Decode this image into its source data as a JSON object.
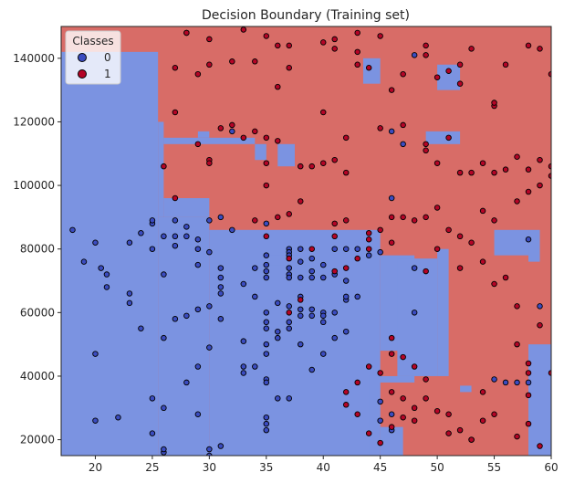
{
  "chart_data": {
    "type": "scatter",
    "title": "Decision Boundary (Training set)",
    "xlabel": "",
    "ylabel": "",
    "xlim": [
      17,
      60
    ],
    "ylim": [
      15000,
      150000
    ],
    "x_ticks": [
      "20",
      "25",
      "30",
      "35",
      "40",
      "45",
      "50",
      "55",
      "60"
    ],
    "x_tick_values": [
      20,
      25,
      30,
      35,
      40,
      45,
      50,
      55,
      60
    ],
    "y_ticks": [
      "20000",
      "40000",
      "60000",
      "80000",
      "100000",
      "120000",
      "140000"
    ],
    "y_tick_values": [
      20000,
      40000,
      60000,
      80000,
      100000,
      120000,
      140000
    ],
    "grid": false,
    "legend": {
      "title": "Classes",
      "placement": "top-left",
      "entries": [
        {
          "label": "0",
          "color": "#3b4cc0"
        },
        {
          "label": "1",
          "color": "#b40426"
        }
      ]
    },
    "colors": {
      "class0_region": "#7b93e1",
      "class1_region": "#d86c67",
      "class0_point": "#3b4cc0",
      "class1_point": "#b40426"
    },
    "regions_class0": [
      [
        17,
        25.5,
        15000,
        142000
      ],
      [
        25.5,
        30,
        15000,
        90000
      ],
      [
        30,
        45,
        15000,
        86000
      ],
      [
        25.5,
        26,
        90000,
        120000
      ],
      [
        26,
        30,
        90000,
        96000
      ],
      [
        26,
        34,
        113000,
        115000
      ],
      [
        29,
        30,
        115000,
        117000
      ],
      [
        34,
        35,
        108000,
        113000
      ],
      [
        36,
        37.5,
        106000,
        113000
      ],
      [
        43.5,
        45,
        132000,
        140000
      ],
      [
        50,
        52,
        130000,
        138000
      ],
      [
        49,
        52,
        113000,
        117000
      ],
      [
        45,
        48,
        48000,
        78000
      ],
      [
        46.5,
        50,
        40000,
        77000
      ],
      [
        50,
        51,
        40000,
        80000
      ],
      [
        44,
        48,
        38000,
        40000
      ],
      [
        44,
        45,
        15000,
        40000
      ],
      [
        45,
        47,
        15000,
        24000
      ],
      [
        55,
        58,
        78000,
        86000
      ],
      [
        58,
        59,
        76000,
        86000
      ],
      [
        58,
        60,
        15000,
        50000
      ],
      [
        52,
        53,
        35000,
        37000
      ],
      [
        35,
        38,
        75000,
        78000
      ]
    ],
    "points_class0": [
      [
        18,
        86000
      ],
      [
        19,
        76000
      ],
      [
        20,
        82000
      ],
      [
        20,
        26000
      ],
      [
        20,
        47000
      ],
      [
        20.5,
        74000
      ],
      [
        21,
        72000
      ],
      [
        21,
        68000
      ],
      [
        22,
        27000
      ],
      [
        23,
        82000
      ],
      [
        23,
        63000
      ],
      [
        23,
        66000
      ],
      [
        24,
        85000
      ],
      [
        24,
        55000
      ],
      [
        25,
        88000
      ],
      [
        25,
        89000
      ],
      [
        25,
        80000
      ],
      [
        25,
        22000
      ],
      [
        25,
        33000
      ],
      [
        26,
        84000
      ],
      [
        26,
        72000
      ],
      [
        26,
        52000
      ],
      [
        26,
        16000
      ],
      [
        26,
        17000
      ],
      [
        26,
        30000
      ],
      [
        27,
        89000
      ],
      [
        27,
        84000
      ],
      [
        27,
        81000
      ],
      [
        27,
        58000
      ],
      [
        28,
        87000
      ],
      [
        28,
        59000
      ],
      [
        28,
        84000
      ],
      [
        28,
        38000
      ],
      [
        29,
        83000
      ],
      [
        29,
        80000
      ],
      [
        29,
        75000
      ],
      [
        29,
        28000
      ],
      [
        29,
        43000
      ],
      [
        29,
        61000
      ],
      [
        30,
        89000
      ],
      [
        30,
        62000
      ],
      [
        30,
        49000
      ],
      [
        30,
        79000
      ],
      [
        30,
        17000
      ],
      [
        30,
        15000
      ],
      [
        31,
        90000
      ],
      [
        31,
        74000
      ],
      [
        31,
        71000
      ],
      [
        31,
        68000
      ],
      [
        31,
        66000
      ],
      [
        31,
        58000
      ],
      [
        31,
        18000
      ],
      [
        32,
        117000
      ],
      [
        32,
        86000
      ],
      [
        33,
        69000
      ],
      [
        33,
        51000
      ],
      [
        33,
        43000
      ],
      [
        33,
        41000
      ],
      [
        34,
        65000
      ],
      [
        34,
        74000
      ],
      [
        34,
        43000
      ],
      [
        35,
        88000
      ],
      [
        35,
        78000
      ],
      [
        35,
        75000
      ],
      [
        35,
        73000
      ],
      [
        35,
        71000
      ],
      [
        35,
        60000
      ],
      [
        35,
        57000
      ],
      [
        35,
        55000
      ],
      [
        35,
        50000
      ],
      [
        35,
        47000
      ],
      [
        35,
        39000
      ],
      [
        35,
        38000
      ],
      [
        35,
        25000
      ],
      [
        35,
        23000
      ],
      [
        35,
        27000
      ],
      [
        36,
        63000
      ],
      [
        36,
        52000
      ],
      [
        36,
        54000
      ],
      [
        36,
        33000
      ],
      [
        37,
        80000
      ],
      [
        37,
        79000
      ],
      [
        37,
        78000
      ],
      [
        37,
        74000
      ],
      [
        37,
        72000
      ],
      [
        37,
        55000
      ],
      [
        37,
        57000
      ],
      [
        37,
        62000
      ],
      [
        37,
        71000
      ],
      [
        37,
        33000
      ],
      [
        38,
        80000
      ],
      [
        38,
        61000
      ],
      [
        38,
        71000
      ],
      [
        38,
        50000
      ],
      [
        38,
        59000
      ],
      [
        38,
        65000
      ],
      [
        38,
        76000
      ],
      [
        39,
        77000
      ],
      [
        39,
        73000
      ],
      [
        39,
        71000
      ],
      [
        39,
        59000
      ],
      [
        39,
        61000
      ],
      [
        39,
        42000
      ],
      [
        40,
        75000
      ],
      [
        40,
        71000
      ],
      [
        40,
        60000
      ],
      [
        40,
        59000
      ],
      [
        40,
        57000
      ],
      [
        40,
        47000
      ],
      [
        41,
        72000
      ],
      [
        41,
        80000
      ],
      [
        41,
        60000
      ],
      [
        41,
        52000
      ],
      [
        42,
        80000
      ],
      [
        42,
        64000
      ],
      [
        42,
        65000
      ],
      [
        42,
        70000
      ],
      [
        42,
        54000
      ],
      [
        43,
        80000
      ],
      [
        43,
        65000
      ],
      [
        44,
        78000
      ],
      [
        45,
        79000
      ],
      [
        45,
        32000
      ],
      [
        45,
        26000
      ],
      [
        46,
        96000
      ],
      [
        46,
        117000
      ],
      [
        46,
        28000
      ],
      [
        46,
        23000
      ],
      [
        47,
        113000
      ],
      [
        48,
        141000
      ],
      [
        48,
        74000
      ],
      [
        58,
        83000
      ],
      [
        59,
        62000
      ],
      [
        55,
        39000
      ],
      [
        56,
        38000
      ],
      [
        57,
        38000
      ],
      [
        58,
        38000
      ],
      [
        48,
        60000
      ],
      [
        53,
        20000
      ]
    ],
    "points_class1": [
      [
        28,
        148000
      ],
      [
        30,
        146000
      ],
      [
        33,
        149000
      ],
      [
        35,
        147000
      ],
      [
        36,
        144000
      ],
      [
        37,
        144000
      ],
      [
        40,
        145000
      ],
      [
        41,
        143000
      ],
      [
        41,
        146000
      ],
      [
        43,
        148000
      ],
      [
        43,
        138000
      ],
      [
        45,
        147000
      ],
      [
        46,
        130000
      ],
      [
        47,
        135000
      ],
      [
        49,
        144000
      ],
      [
        49,
        141000
      ],
      [
        50,
        134000
      ],
      [
        51,
        136000
      ],
      [
        52,
        138000
      ],
      [
        52,
        132000
      ],
      [
        53,
        143000
      ],
      [
        55,
        125000
      ],
      [
        55,
        126000
      ],
      [
        56,
        138000
      ],
      [
        58,
        144000
      ],
      [
        59,
        143000
      ],
      [
        60,
        135000
      ],
      [
        27,
        137000
      ],
      [
        30,
        138000
      ],
      [
        32,
        139000
      ],
      [
        34,
        139000
      ],
      [
        26,
        106000
      ],
      [
        27,
        123000
      ],
      [
        28,
        148000
      ],
      [
        29,
        135000
      ],
      [
        29,
        113000
      ],
      [
        30,
        108000
      ],
      [
        31,
        118000
      ],
      [
        32,
        119000
      ],
      [
        33,
        115000
      ],
      [
        34,
        117000
      ],
      [
        35,
        115000
      ],
      [
        35,
        107000
      ],
      [
        36,
        114000
      ],
      [
        36,
        131000
      ],
      [
        37,
        137000
      ],
      [
        38,
        106000
      ],
      [
        39,
        106000
      ],
      [
        40,
        107000
      ],
      [
        40,
        123000
      ],
      [
        41,
        108000
      ],
      [
        42,
        104000
      ],
      [
        42,
        115000
      ],
      [
        43,
        142000
      ],
      [
        44,
        137000
      ],
      [
        45,
        118000
      ],
      [
        47,
        119000
      ],
      [
        49,
        111000
      ],
      [
        49,
        113000
      ],
      [
        50,
        107000
      ],
      [
        51,
        115000
      ],
      [
        52,
        104000
      ],
      [
        53,
        104000
      ],
      [
        54,
        107000
      ],
      [
        55,
        104000
      ],
      [
        56,
        105000
      ],
      [
        57,
        109000
      ],
      [
        58,
        105000
      ],
      [
        59,
        108000
      ],
      [
        60,
        106000
      ],
      [
        27,
        96000
      ],
      [
        30,
        107000
      ],
      [
        34,
        89000
      ],
      [
        35,
        100000
      ],
      [
        36,
        90000
      ],
      [
        37,
        91000
      ],
      [
        38,
        95000
      ],
      [
        41,
        88000
      ],
      [
        42,
        89000
      ],
      [
        44,
        85000
      ],
      [
        45,
        86000
      ],
      [
        46,
        90000
      ],
      [
        47,
        90000
      ],
      [
        48,
        89000
      ],
      [
        49,
        90000
      ],
      [
        50,
        93000
      ],
      [
        51,
        86000
      ],
      [
        52,
        84000
      ],
      [
        53,
        82000
      ],
      [
        54,
        92000
      ],
      [
        55,
        89000
      ],
      [
        57,
        95000
      ],
      [
        58,
        98000
      ],
      [
        59,
        100000
      ],
      [
        60,
        103000
      ],
      [
        46,
        82000
      ],
      [
        44,
        83000
      ],
      [
        49,
        73000
      ],
      [
        50,
        80000
      ],
      [
        52,
        74000
      ],
      [
        54,
        76000
      ],
      [
        55,
        69000
      ],
      [
        56,
        71000
      ],
      [
        57,
        62000
      ],
      [
        59,
        56000
      ],
      [
        58,
        44000
      ],
      [
        60,
        41000
      ],
      [
        58,
        34000
      ],
      [
        55,
        28000
      ],
      [
        54,
        26000
      ],
      [
        53,
        20000
      ],
      [
        52,
        23000
      ],
      [
        51,
        22000
      ],
      [
        49,
        39000
      ],
      [
        48,
        43000
      ],
      [
        47,
        46000
      ],
      [
        46,
        47000
      ],
      [
        46,
        52000
      ],
      [
        45,
        41000
      ],
      [
        44,
        43000
      ],
      [
        43,
        38000
      ],
      [
        42,
        35000
      ],
      [
        42,
        31000
      ],
      [
        43,
        28000
      ],
      [
        44,
        22000
      ],
      [
        45,
        19000
      ],
      [
        46,
        24000
      ],
      [
        47,
        27000
      ],
      [
        48,
        30000
      ],
      [
        49,
        33000
      ],
      [
        50,
        29000
      ],
      [
        51,
        28000
      ],
      [
        57,
        21000
      ],
      [
        58,
        25000
      ],
      [
        59,
        18000
      ],
      [
        58,
        41000
      ],
      [
        57,
        50000
      ],
      [
        54,
        35000
      ],
      [
        46,
        35000
      ],
      [
        47,
        33000
      ],
      [
        48,
        26000
      ],
      [
        35,
        84000
      ],
      [
        37,
        77000
      ],
      [
        39,
        80000
      ],
      [
        41,
        84000
      ],
      [
        42,
        74000
      ],
      [
        41,
        73000
      ],
      [
        44,
        80000
      ],
      [
        43,
        77000
      ],
      [
        37,
        60000
      ],
      [
        38,
        64000
      ]
    ]
  }
}
